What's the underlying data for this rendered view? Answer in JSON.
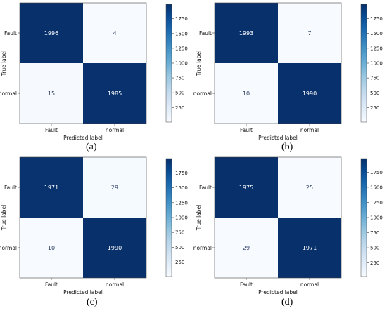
{
  "chart_data": [
    {
      "type": "heatmap",
      "subfigure": "(a)",
      "xlabel": "Predicted label",
      "ylabel": "True label",
      "x_categories": [
        "Fault",
        "normal"
      ],
      "y_categories": [
        "Fault",
        "normal"
      ],
      "matrix": [
        [
          1996,
          4
        ],
        [
          15,
          1985
        ]
      ],
      "colorbar_ticks": [
        250,
        500,
        750,
        1000,
        1250,
        1500,
        1750
      ],
      "colorbar_range": [
        4,
        1996
      ],
      "colormap": [
        "#f7fbff",
        "#08306b"
      ]
    },
    {
      "type": "heatmap",
      "subfigure": "(b)",
      "xlabel": "Predicted label",
      "ylabel": "True label",
      "x_categories": [
        "Fault",
        "normal"
      ],
      "y_categories": [
        "Fault",
        "normal"
      ],
      "matrix": [
        [
          1993,
          7
        ],
        [
          10,
          1990
        ]
      ],
      "colorbar_ticks": [
        250,
        500,
        750,
        1000,
        1250,
        1500,
        1750
      ],
      "colorbar_range": [
        7,
        1993
      ],
      "colormap": [
        "#f7fbff",
        "#08306b"
      ]
    },
    {
      "type": "heatmap",
      "subfigure": "(c)",
      "xlabel": "Predicted label",
      "ylabel": "True label",
      "x_categories": [
        "Fault",
        "normal"
      ],
      "y_categories": [
        "Fault",
        "normal"
      ],
      "matrix": [
        [
          1971,
          29
        ],
        [
          10,
          1990
        ]
      ],
      "colorbar_ticks": [
        250,
        500,
        750,
        1000,
        1250,
        1500,
        1750
      ],
      "colorbar_range": [
        10,
        1990
      ],
      "colormap": [
        "#f7fbff",
        "#08306b"
      ]
    },
    {
      "type": "heatmap",
      "subfigure": "(d)",
      "xlabel": "Predicted label",
      "ylabel": "True label",
      "x_categories": [
        "Fault",
        "normal"
      ],
      "y_categories": [
        "Fault",
        "normal"
      ],
      "matrix": [
        [
          1975,
          25
        ],
        [
          29,
          1971
        ]
      ],
      "colorbar_ticks": [
        250,
        500,
        750,
        1000,
        1250,
        1500,
        1750
      ],
      "colorbar_range": [
        25,
        1975
      ],
      "colormap": [
        "#f7fbff",
        "#08306b"
      ]
    }
  ]
}
